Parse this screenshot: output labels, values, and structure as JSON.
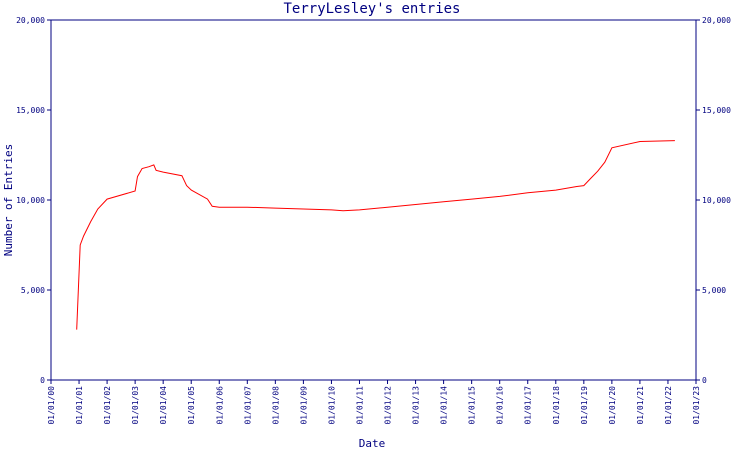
{
  "chart_data": {
    "type": "line",
    "title": "TerryLesley's entries",
    "xlabel": "Date",
    "ylabel": "Number of Entries",
    "x_ticks": [
      "01/01/00",
      "01/01/01",
      "01/01/02",
      "01/01/03",
      "01/01/04",
      "01/01/05",
      "01/01/06",
      "01/01/07",
      "01/01/08",
      "01/01/09",
      "01/01/10",
      "01/01/11",
      "01/01/12",
      "01/01/13",
      "01/01/14",
      "01/01/15",
      "01/01/16",
      "01/01/17",
      "01/01/18",
      "01/01/19",
      "01/01/20",
      "01/01/21",
      "01/01/22",
      "01/01/23"
    ],
    "y_ticks": [
      "0",
      "5,000",
      "10,000",
      "15,000",
      "20,000"
    ],
    "ylim": [
      0,
      20000
    ],
    "xlim": [
      "2000-01-01",
      "2023-01-01"
    ],
    "grid": false,
    "line_color": "#ff0000",
    "axis_color": "#000080",
    "series": [
      {
        "x": [
          "2000-12-01",
          "2001-01-15",
          "2001-03-01",
          "2001-06-01",
          "2001-09-01",
          "2002-01-01",
          "2003-01-01",
          "2003-02-01",
          "2003-04-01",
          "2003-07-01",
          "2003-09-01",
          "2003-10-01",
          "2004-01-01",
          "2004-09-01",
          "2004-11-01",
          "2005-01-01",
          "2005-08-01",
          "2005-10-01",
          "2006-01-01",
          "2007-01-01",
          "2008-01-01",
          "2009-01-01",
          "2010-01-01",
          "2010-06-01",
          "2011-01-01",
          "2012-01-01",
          "2013-01-01",
          "2014-01-01",
          "2015-01-01",
          "2016-01-01",
          "2017-01-01",
          "2018-01-01",
          "2018-10-01",
          "2019-01-01",
          "2019-04-01",
          "2019-07-01",
          "2019-10-01",
          "2020-01-01",
          "2021-01-01",
          "2022-04-01"
        ],
        "y": [
          2800,
          7500,
          8000,
          8800,
          9500,
          10050,
          10500,
          11300,
          11750,
          11850,
          11950,
          11650,
          11550,
          11350,
          10800,
          10550,
          10050,
          9650,
          9600,
          9600,
          9550,
          9500,
          9450,
          9400,
          9450,
          9600,
          9750,
          9900,
          10050,
          10200,
          10400,
          10550,
          10750,
          10800,
          11200,
          11600,
          12100,
          12900,
          13250,
          13300
        ]
      }
    ]
  }
}
